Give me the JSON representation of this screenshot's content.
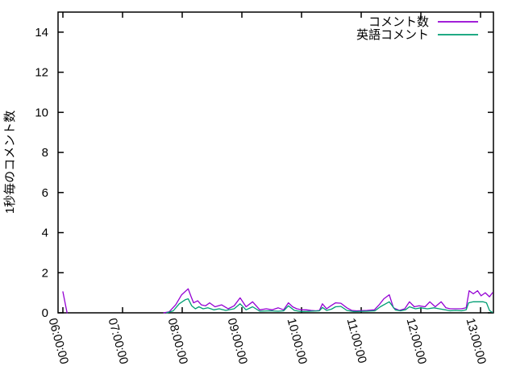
{
  "chart_data": {
    "type": "line",
    "title": "",
    "xlabel": "",
    "ylabel": "1秒毎のコメント数",
    "background_color": "#ffffff",
    "axis_color": "#000000",
    "grid": false,
    "legend_position": "top-right-inside",
    "x_axis": {
      "tick_labels": [
        "06:00:00",
        "07:00:00",
        "08:00:00",
        "09:00:00",
        "10:00:00",
        "11:00:00",
        "12:00:00",
        "13:00:00"
      ],
      "tick_hours": [
        6,
        7,
        8,
        9,
        10,
        11,
        12,
        13
      ],
      "range_hours": [
        5.92,
        13.22
      ],
      "units": "time of day (decimal hours)"
    },
    "y_axis": {
      "ticks": [
        0,
        2,
        4,
        6,
        8,
        10,
        12,
        14
      ],
      "range": [
        0,
        15
      ]
    },
    "series": [
      {
        "name": "コメント数",
        "color": "#9400d3",
        "segments": [
          [
            [
              6.0,
              1.05
            ],
            [
              6.07,
              0.0
            ]
          ],
          [
            [
              7.69,
              0.0
            ],
            [
              7.78,
              0.05
            ],
            [
              7.89,
              0.4
            ],
            [
              7.99,
              0.9
            ],
            [
              8.1,
              1.2
            ],
            [
              8.15,
              0.8
            ],
            [
              8.19,
              0.5
            ],
            [
              8.26,
              0.6
            ],
            [
              8.32,
              0.4
            ],
            [
              8.39,
              0.35
            ],
            [
              8.46,
              0.5
            ],
            [
              8.55,
              0.3
            ],
            [
              8.66,
              0.4
            ],
            [
              8.77,
              0.2
            ],
            [
              8.87,
              0.35
            ],
            [
              8.97,
              0.75
            ],
            [
              9.07,
              0.3
            ],
            [
              9.18,
              0.55
            ],
            [
              9.3,
              0.15
            ],
            [
              9.41,
              0.2
            ],
            [
              9.51,
              0.15
            ],
            [
              9.61,
              0.25
            ],
            [
              9.7,
              0.15
            ],
            [
              9.78,
              0.5
            ],
            [
              9.85,
              0.3
            ],
            [
              9.92,
              0.2
            ],
            [
              10.0,
              0.15
            ],
            [
              10.08,
              0.15
            ],
            [
              10.16,
              0.12
            ],
            [
              10.24,
              0.1
            ],
            [
              10.3,
              0.12
            ],
            [
              10.35,
              0.45
            ],
            [
              10.42,
              0.2
            ],
            [
              10.49,
              0.35
            ],
            [
              10.57,
              0.5
            ],
            [
              10.66,
              0.48
            ],
            [
              10.76,
              0.25
            ],
            [
              10.84,
              0.12
            ],
            [
              10.92,
              0.1
            ],
            [
              11.1,
              0.12
            ],
            [
              11.22,
              0.15
            ],
            [
              11.3,
              0.4
            ],
            [
              11.38,
              0.7
            ],
            [
              11.47,
              0.9
            ],
            [
              11.54,
              0.25
            ],
            [
              11.64,
              0.12
            ],
            [
              11.73,
              0.2
            ],
            [
              11.81,
              0.55
            ],
            [
              11.89,
              0.3
            ],
            [
              11.97,
              0.35
            ],
            [
              12.07,
              0.3
            ],
            [
              12.15,
              0.55
            ],
            [
              12.24,
              0.3
            ],
            [
              12.34,
              0.55
            ],
            [
              12.42,
              0.25
            ],
            [
              12.49,
              0.2
            ],
            [
              12.58,
              0.2
            ],
            [
              12.68,
              0.2
            ],
            [
              12.76,
              0.25
            ],
            [
              12.81,
              1.1
            ],
            [
              12.88,
              0.95
            ],
            [
              12.95,
              1.1
            ],
            [
              13.01,
              0.85
            ],
            [
              13.08,
              1.0
            ],
            [
              13.15,
              0.8
            ],
            [
              13.2,
              1.0
            ]
          ]
        ]
      },
      {
        "name": "英語コメント",
        "color": "#009e73",
        "segments": [
          [
            [
              7.74,
              0.0
            ],
            [
              7.85,
              0.1
            ],
            [
              7.95,
              0.45
            ],
            [
              8.05,
              0.65
            ],
            [
              8.1,
              0.7
            ],
            [
              8.16,
              0.35
            ],
            [
              8.22,
              0.2
            ],
            [
              8.28,
              0.3
            ],
            [
              8.35,
              0.2
            ],
            [
              8.43,
              0.25
            ],
            [
              8.53,
              0.15
            ],
            [
              8.62,
              0.2
            ],
            [
              8.73,
              0.12
            ],
            [
              8.87,
              0.2
            ],
            [
              8.97,
              0.45
            ],
            [
              9.07,
              0.15
            ],
            [
              9.18,
              0.3
            ],
            [
              9.3,
              0.08
            ],
            [
              9.47,
              0.1
            ],
            [
              9.61,
              0.08
            ],
            [
              9.7,
              0.1
            ],
            [
              9.78,
              0.35
            ],
            [
              9.88,
              0.12
            ],
            [
              10.0,
              0.06
            ],
            [
              10.15,
              0.08
            ],
            [
              10.3,
              0.1
            ],
            [
              10.35,
              0.27
            ],
            [
              10.42,
              0.12
            ],
            [
              10.5,
              0.18
            ],
            [
              10.57,
              0.3
            ],
            [
              10.66,
              0.32
            ],
            [
              10.76,
              0.12
            ],
            [
              10.88,
              0.06
            ],
            [
              11.1,
              0.08
            ],
            [
              11.23,
              0.1
            ],
            [
              11.32,
              0.3
            ],
            [
              11.41,
              0.45
            ],
            [
              11.47,
              0.55
            ],
            [
              11.57,
              0.15
            ],
            [
              11.66,
              0.1
            ],
            [
              11.74,
              0.15
            ],
            [
              11.81,
              0.3
            ],
            [
              11.91,
              0.2
            ],
            [
              12.0,
              0.25
            ],
            [
              12.11,
              0.2
            ],
            [
              12.22,
              0.25
            ],
            [
              12.31,
              0.2
            ],
            [
              12.41,
              0.15
            ],
            [
              12.49,
              0.1
            ],
            [
              12.58,
              0.12
            ],
            [
              12.68,
              0.1
            ],
            [
              12.76,
              0.15
            ],
            [
              12.8,
              0.5
            ],
            [
              12.88,
              0.55
            ],
            [
              12.96,
              0.55
            ],
            [
              13.04,
              0.55
            ],
            [
              13.1,
              0.5
            ],
            [
              13.15,
              0.12
            ],
            [
              13.2,
              0.02
            ]
          ]
        ]
      }
    ]
  }
}
